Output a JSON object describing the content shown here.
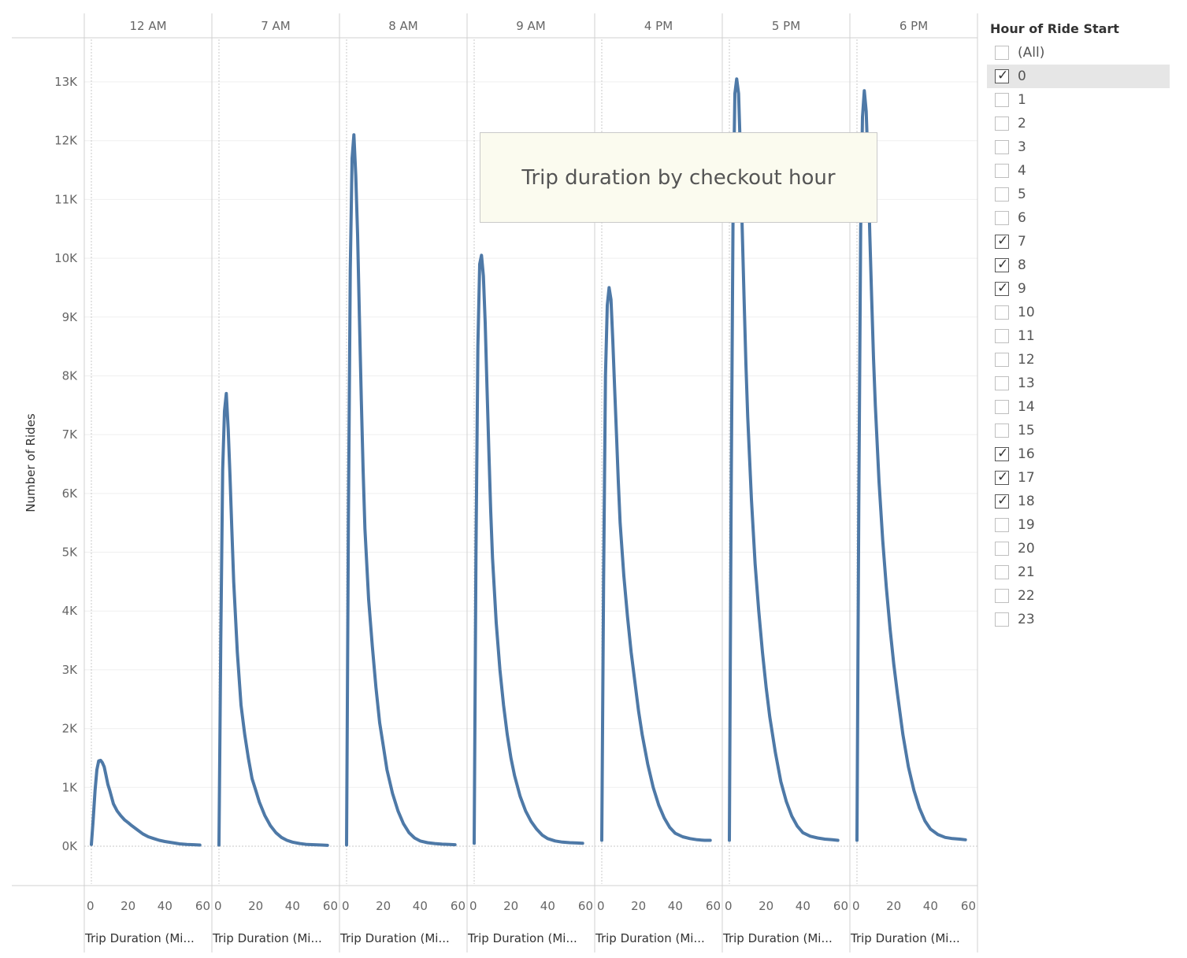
{
  "annotation": {
    "text": "Trip duration by checkout hour"
  },
  "filter": {
    "title": "Hour of Ride Start",
    "items": [
      {
        "label": "(All)",
        "checked": false
      },
      {
        "label": "0",
        "checked": true,
        "highlight": true
      },
      {
        "label": "1",
        "checked": false
      },
      {
        "label": "2",
        "checked": false
      },
      {
        "label": "3",
        "checked": false
      },
      {
        "label": "4",
        "checked": false
      },
      {
        "label": "5",
        "checked": false
      },
      {
        "label": "6",
        "checked": false
      },
      {
        "label": "7",
        "checked": true
      },
      {
        "label": "8",
        "checked": true
      },
      {
        "label": "9",
        "checked": true
      },
      {
        "label": "10",
        "checked": false
      },
      {
        "label": "11",
        "checked": false
      },
      {
        "label": "12",
        "checked": false
      },
      {
        "label": "13",
        "checked": false
      },
      {
        "label": "14",
        "checked": false
      },
      {
        "label": "15",
        "checked": false
      },
      {
        "label": "16",
        "checked": true
      },
      {
        "label": "17",
        "checked": true
      },
      {
        "label": "18",
        "checked": true
      },
      {
        "label": "19",
        "checked": false
      },
      {
        "label": "20",
        "checked": false
      },
      {
        "label": "21",
        "checked": false
      },
      {
        "label": "22",
        "checked": false
      },
      {
        "label": "23",
        "checked": false
      }
    ]
  },
  "chart_data": {
    "type": "line",
    "ylabel": "Number of Rides",
    "xlabel": "Trip Duration (Mi...",
    "ylim": [
      0,
      13500
    ],
    "xlim": [
      0,
      60
    ],
    "y_ticks": [
      {
        "value": 0,
        "label": "0K"
      },
      {
        "value": 1000,
        "label": "1K"
      },
      {
        "value": 2000,
        "label": "2K"
      },
      {
        "value": 3000,
        "label": "3K"
      },
      {
        "value": 4000,
        "label": "4K"
      },
      {
        "value": 5000,
        "label": "5K"
      },
      {
        "value": 6000,
        "label": "6K"
      },
      {
        "value": 7000,
        "label": "7K"
      },
      {
        "value": 8000,
        "label": "8K"
      },
      {
        "value": 9000,
        "label": "9K"
      },
      {
        "value": 10000,
        "label": "10K"
      },
      {
        "value": 11000,
        "label": "11K"
      },
      {
        "value": 12000,
        "label": "12K"
      },
      {
        "value": 13000,
        "label": "13K"
      }
    ],
    "x_ticks": [
      {
        "value": 0,
        "label": "0"
      },
      {
        "value": 20,
        "label": "20"
      },
      {
        "value": 40,
        "label": "40"
      },
      {
        "value": 60,
        "label": "60"
      }
    ],
    "line_color": "#4e79a7",
    "grid": true,
    "legend": "right",
    "x": [
      0,
      1,
      2,
      3,
      4,
      5,
      6,
      7,
      8,
      9,
      10,
      12,
      14,
      16,
      18,
      20,
      22,
      25,
      28,
      31,
      34,
      37,
      40,
      44,
      48,
      52,
      56,
      59
    ],
    "series": [
      {
        "name": "12 AM",
        "values": [
          30,
          450,
          950,
          1300,
          1450,
          1460,
          1420,
          1350,
          1200,
          1050,
          950,
          720,
          600,
          520,
          450,
          400,
          350,
          280,
          210,
          160,
          130,
          100,
          80,
          60,
          40,
          30,
          25,
          20
        ]
      },
      {
        "name": "7 AM",
        "values": [
          20,
          3500,
          6400,
          7400,
          7700,
          7100,
          6300,
          5400,
          4500,
          3900,
          3300,
          2400,
          1900,
          1500,
          1150,
          950,
          750,
          520,
          350,
          230,
          150,
          100,
          70,
          45,
          30,
          25,
          20,
          15
        ]
      },
      {
        "name": "8 AM",
        "values": [
          20,
          5500,
          9800,
          11700,
          12100,
          11400,
          10400,
          9000,
          7600,
          6400,
          5400,
          4200,
          3400,
          2700,
          2100,
          1700,
          1300,
          900,
          600,
          380,
          230,
          140,
          90,
          60,
          45,
          35,
          30,
          25
        ]
      },
      {
        "name": "9 AM",
        "values": [
          50,
          5000,
          8500,
          9900,
          10050,
          9700,
          8900,
          7800,
          6700,
          5700,
          4900,
          3800,
          3000,
          2400,
          1900,
          1500,
          1200,
          850,
          600,
          420,
          290,
          190,
          130,
          90,
          70,
          60,
          55,
          50
        ]
      },
      {
        "name": "4 PM",
        "values": [
          100,
          4500,
          8000,
          9200,
          9500,
          9300,
          8600,
          7800,
          7000,
          6200,
          5500,
          4600,
          3900,
          3300,
          2800,
          2300,
          1900,
          1400,
          1000,
          700,
          480,
          320,
          220,
          160,
          130,
          110,
          100,
          100
        ]
      },
      {
        "name": "5 PM",
        "values": [
          100,
          6000,
          10800,
          12800,
          13050,
          12800,
          11800,
          10500,
          9300,
          8200,
          7300,
          5900,
          4800,
          4000,
          3300,
          2700,
          2200,
          1600,
          1100,
          760,
          510,
          340,
          230,
          170,
          140,
          120,
          110,
          100
        ]
      },
      {
        "name": "6 PM",
        "values": [
          100,
          5800,
          10500,
          12400,
          12850,
          12500,
          11600,
          10400,
          9300,
          8300,
          7500,
          6200,
          5200,
          4400,
          3700,
          3100,
          2600,
          1900,
          1350,
          950,
          650,
          430,
          290,
          200,
          150,
          130,
          120,
          110
        ]
      }
    ]
  }
}
